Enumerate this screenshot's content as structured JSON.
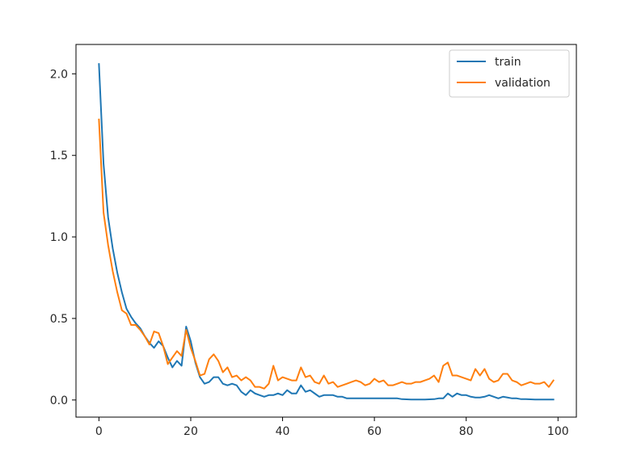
{
  "chart_data": {
    "type": "line",
    "title": "",
    "xlabel": "",
    "ylabel": "",
    "xlim": [
      -5,
      104
    ],
    "ylim": [
      -0.105,
      2.18
    ],
    "xticks": [
      0,
      20,
      40,
      60,
      80,
      100
    ],
    "yticks": [
      0.0,
      0.5,
      1.0,
      1.5,
      2.0
    ],
    "xtick_labels": [
      "0",
      "20",
      "40",
      "60",
      "80",
      "100"
    ],
    "ytick_labels": [
      "0.0",
      "0.5",
      "1.0",
      "1.5",
      "2.0"
    ],
    "grid": false,
    "legend_position": "top-right",
    "x": [
      0,
      1,
      2,
      3,
      4,
      5,
      6,
      7,
      8,
      9,
      10,
      11,
      12,
      13,
      14,
      15,
      16,
      17,
      18,
      19,
      20,
      21,
      22,
      23,
      24,
      25,
      26,
      27,
      28,
      29,
      30,
      31,
      32,
      33,
      34,
      35,
      36,
      37,
      38,
      39,
      40,
      41,
      42,
      43,
      44,
      45,
      46,
      47,
      48,
      49,
      50,
      51,
      52,
      53,
      54,
      55,
      56,
      57,
      58,
      59,
      60,
      61,
      62,
      63,
      64,
      65,
      66,
      67,
      68,
      69,
      70,
      71,
      72,
      73,
      74,
      75,
      76,
      77,
      78,
      79,
      80,
      81,
      82,
      83,
      84,
      85,
      86,
      87,
      88,
      89,
      90,
      91,
      92,
      93,
      94,
      95,
      96,
      97,
      98,
      99
    ],
    "series": [
      {
        "name": "train",
        "color": "#1f77b4",
        "values": [
          2.06,
          1.45,
          1.12,
          0.93,
          0.78,
          0.66,
          0.56,
          0.51,
          0.47,
          0.44,
          0.39,
          0.35,
          0.32,
          0.36,
          0.33,
          0.26,
          0.2,
          0.24,
          0.21,
          0.45,
          0.36,
          0.23,
          0.14,
          0.1,
          0.11,
          0.14,
          0.14,
          0.1,
          0.09,
          0.1,
          0.09,
          0.05,
          0.03,
          0.06,
          0.04,
          0.03,
          0.02,
          0.03,
          0.03,
          0.04,
          0.03,
          0.06,
          0.04,
          0.04,
          0.09,
          0.05,
          0.06,
          0.04,
          0.02,
          0.03,
          0.03,
          0.03,
          0.02,
          0.02,
          0.01,
          0.01,
          0.01,
          0.01,
          0.01,
          0.01,
          0.01,
          0.01,
          0.01,
          0.01,
          0.01,
          0.01,
          0.005,
          0.004,
          0.003,
          0.003,
          0.003,
          0.003,
          0.004,
          0.005,
          0.01,
          0.01,
          0.04,
          0.02,
          0.04,
          0.03,
          0.03,
          0.02,
          0.015,
          0.015,
          0.02,
          0.03,
          0.02,
          0.01,
          0.02,
          0.015,
          0.01,
          0.01,
          0.005,
          0.005,
          0.004,
          0.003,
          0.003,
          0.003,
          0.003,
          0.003
        ]
      },
      {
        "name": "validation",
        "color": "#ff7f0e",
        "values": [
          1.72,
          1.15,
          0.95,
          0.79,
          0.66,
          0.55,
          0.53,
          0.46,
          0.46,
          0.43,
          0.39,
          0.34,
          0.42,
          0.41,
          0.33,
          0.22,
          0.26,
          0.3,
          0.27,
          0.43,
          0.32,
          0.24,
          0.15,
          0.16,
          0.25,
          0.28,
          0.24,
          0.17,
          0.2,
          0.14,
          0.15,
          0.12,
          0.14,
          0.12,
          0.08,
          0.08,
          0.07,
          0.1,
          0.21,
          0.12,
          0.14,
          0.13,
          0.12,
          0.12,
          0.2,
          0.14,
          0.15,
          0.11,
          0.1,
          0.15,
          0.1,
          0.11,
          0.08,
          0.09,
          0.1,
          0.11,
          0.12,
          0.11,
          0.09,
          0.1,
          0.13,
          0.11,
          0.12,
          0.09,
          0.09,
          0.1,
          0.11,
          0.1,
          0.1,
          0.11,
          0.11,
          0.12,
          0.13,
          0.15,
          0.11,
          0.21,
          0.23,
          0.15,
          0.15,
          0.14,
          0.13,
          0.12,
          0.19,
          0.15,
          0.19,
          0.13,
          0.11,
          0.12,
          0.16,
          0.16,
          0.12,
          0.11,
          0.09,
          0.1,
          0.11,
          0.1,
          0.1,
          0.11,
          0.08,
          0.12
        ]
      }
    ]
  }
}
